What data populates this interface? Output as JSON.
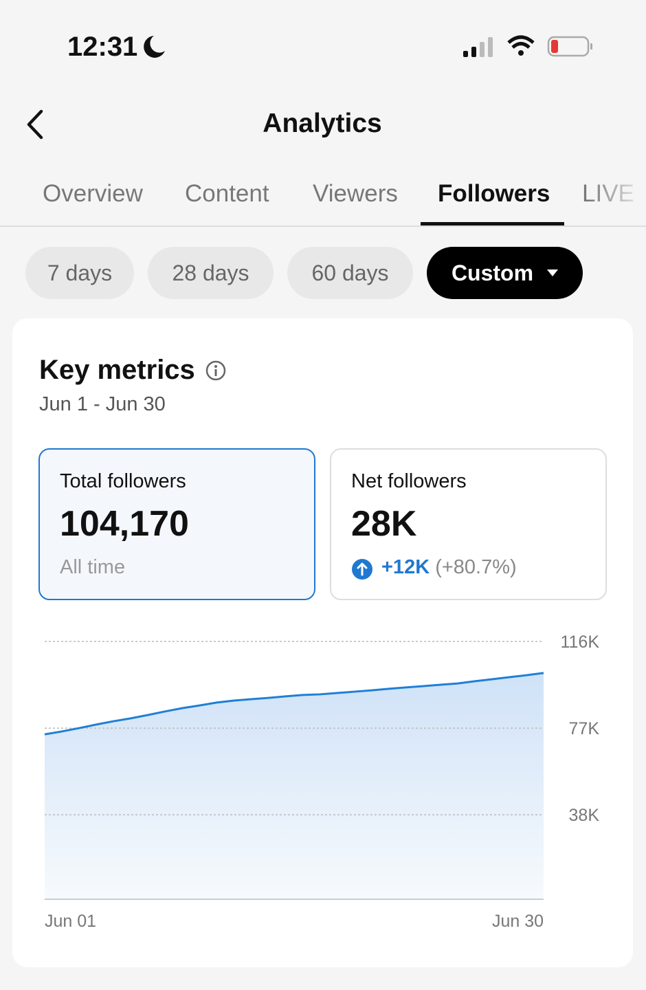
{
  "status": {
    "time": "12:31"
  },
  "header": {
    "title": "Analytics"
  },
  "tabs": {
    "items": [
      "Overview",
      "Content",
      "Viewers",
      "Followers",
      "LIVE"
    ],
    "active": 3
  },
  "filters": {
    "items": [
      "7 days",
      "28 days",
      "60 days",
      "Custom"
    ],
    "active": 3
  },
  "card": {
    "title": "Key metrics",
    "date_range": "Jun 1 - Jun 30"
  },
  "metrics": [
    {
      "label": "Total followers",
      "value": "104,170",
      "note": "All time"
    },
    {
      "label": "Net followers",
      "value": "28K",
      "change": "+12K",
      "change_pct": "(+80.7%)"
    }
  ],
  "chart_data": {
    "type": "area",
    "categories": [
      "Jun 01",
      null,
      null,
      null,
      null,
      null,
      null,
      null,
      null,
      null,
      null,
      null,
      null,
      null,
      null,
      null,
      null,
      null,
      null,
      null,
      null,
      null,
      null,
      null,
      null,
      null,
      null,
      null,
      null,
      "Jun 30"
    ],
    "values": [
      74200,
      75500,
      77000,
      78600,
      80100,
      81400,
      82900,
      84500,
      86000,
      87200,
      88500,
      89400,
      90000,
      90600,
      91300,
      91900,
      92200,
      92800,
      93400,
      94000,
      94700,
      95300,
      95900,
      96500,
      97100,
      98100,
      99000,
      99900,
      100800,
      101800
    ],
    "color": "#1f7fd6",
    "ylim": [
      0,
      116000
    ],
    "yticks": [
      {
        "value": 38000,
        "label": "38K"
      },
      {
        "value": 77000,
        "label": "77K"
      },
      {
        "value": 116000,
        "label": "116K"
      }
    ],
    "grid": true
  }
}
